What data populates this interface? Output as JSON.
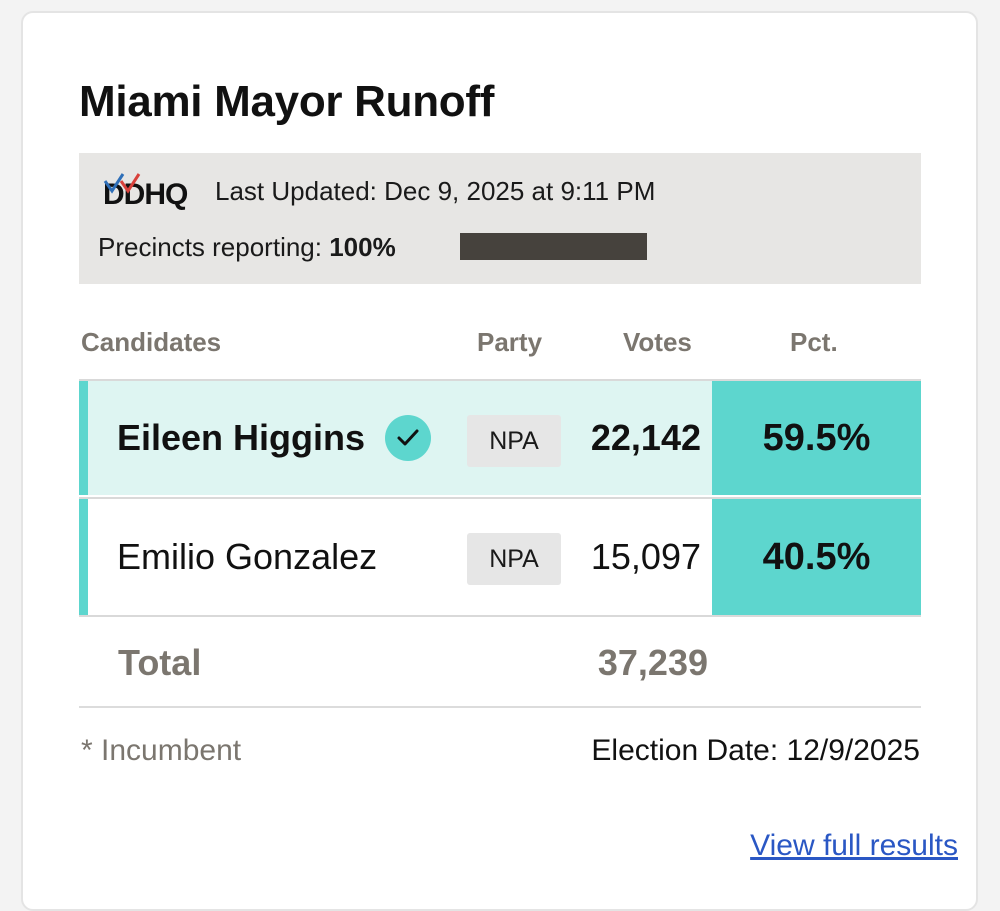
{
  "title": "Miami Mayor Runoff",
  "info": {
    "source_logo": "DDHQ",
    "last_updated": "Last Updated: Dec 9, 2025 at 9:11 PM",
    "precincts_label": "Precincts reporting:",
    "precincts_value": "100%",
    "precincts_progress_pct": 100
  },
  "table": {
    "headers": {
      "candidates": "Candidates",
      "party": "Party",
      "votes": "Votes",
      "pct": "Pct."
    },
    "rows": [
      {
        "name": "Eileen Higgins",
        "winner": true,
        "party": "NPA",
        "votes": "22,142",
        "pct": "59.5%"
      },
      {
        "name": "Emilio Gonzalez",
        "winner": false,
        "party": "NPA",
        "votes": "15,097",
        "pct": "40.5%"
      }
    ],
    "total_label": "Total",
    "total_votes": "37,239"
  },
  "footer": {
    "incumbent_note": "* Incumbent",
    "election_date": "Election Date: 12/9/2025",
    "full_results_link": "View full results"
  },
  "colors": {
    "accent": "#5dd6ce",
    "winner_row_bg": "#def5f2",
    "info_bg": "#e7e6e4",
    "progress_fill": "#46423d",
    "muted_text": "#7b766f",
    "link": "#2a57c4"
  },
  "icons": {
    "winner": "check-icon",
    "logo": "ddhq-logo"
  }
}
